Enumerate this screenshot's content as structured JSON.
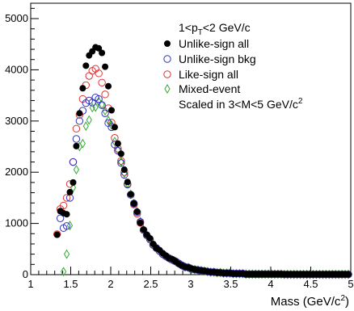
{
  "chart_data": {
    "type": "scatter",
    "title": "",
    "xlabel": "Mass (GeV/c",
    "xlabel_sup": "2",
    "xlabel_end": ")",
    "ylabel": "",
    "xlim": [
      1,
      5
    ],
    "ylim": [
      0,
      5300
    ],
    "x_ticks": [
      1,
      1.5,
      2,
      2.5,
      3,
      3.5,
      4,
      4.5,
      5
    ],
    "y_ticks": [
      0,
      1000,
      2000,
      3000,
      4000,
      5000
    ],
    "grid": false,
    "legend_placement": "top-right",
    "legend_header": {
      "prefix": "1<p",
      "sub": "T",
      "suffix": "<2 GeV/c"
    },
    "legend_footer": {
      "text": "Scaled in 3<M<5 GeV/c",
      "sup": "2"
    },
    "series": [
      {
        "name": "Unlike-sign all",
        "marker": "filled-circle",
        "color": "#000000",
        "x": [
          1.33,
          1.37,
          1.41,
          1.45,
          1.49,
          1.53,
          1.57,
          1.61,
          1.65,
          1.69,
          1.73,
          1.77,
          1.81,
          1.85,
          1.89,
          1.93,
          1.97,
          2.01,
          2.05,
          2.09,
          2.13,
          2.17,
          2.21,
          2.25,
          2.29,
          2.33,
          2.37,
          2.41,
          2.45,
          2.49,
          2.53,
          2.57,
          2.61,
          2.65,
          2.69,
          2.73,
          2.77,
          2.81,
          2.85,
          2.89,
          2.93,
          2.97,
          3.01,
          3.05,
          3.09,
          3.13,
          3.17,
          3.21,
          3.25,
          3.29,
          3.33,
          3.37,
          3.41,
          3.45,
          3.49,
          3.53,
          3.57,
          3.61,
          3.65,
          3.69,
          3.73,
          3.77,
          3.81,
          3.85,
          3.89,
          3.93,
          3.97,
          4.01,
          4.05,
          4.09,
          4.13,
          4.17,
          4.21,
          4.25,
          4.29,
          4.33,
          4.37,
          4.41,
          4.45,
          4.49,
          4.53,
          4.57,
          4.61,
          4.65,
          4.69,
          4.73,
          4.77,
          4.81,
          4.85,
          4.89,
          4.93,
          4.97
        ],
        "values": [
          780,
          1240,
          1200,
          1180,
          1610,
          1800,
          2510,
          3150,
          3640,
          4080,
          4280,
          4360,
          4440,
          4420,
          4330,
          4060,
          3680,
          3210,
          2880,
          2560,
          2360,
          2050,
          1810,
          1570,
          1390,
          1230,
          1010,
          880,
          780,
          710,
          600,
          520,
          480,
          420,
          370,
          320,
          300,
          260,
          210,
          180,
          150,
          140,
          120,
          100,
          90,
          80,
          70,
          60,
          50,
          50,
          40,
          40,
          30,
          30,
          30,
          20,
          20,
          20,
          20,
          10,
          10,
          10,
          10,
          10,
          10,
          10,
          10,
          10,
          10,
          10,
          10,
          5,
          5,
          5,
          5,
          5,
          5,
          5,
          5,
          5,
          5,
          5,
          5,
          5,
          5,
          5,
          5,
          5,
          5,
          5,
          5,
          5
        ]
      },
      {
        "name": "Unlike-sign bkg",
        "marker": "open-circle",
        "color": "#3333bb",
        "x": [
          1.37,
          1.41,
          1.45,
          1.49,
          1.53,
          1.57,
          1.61,
          1.65,
          1.69,
          1.73,
          1.77,
          1.81,
          1.85,
          1.89,
          1.93,
          1.97,
          2.01,
          2.05,
          2.09,
          2.13,
          2.17,
          2.21,
          2.25,
          2.29,
          2.33,
          2.37,
          2.41,
          2.45,
          2.49,
          2.53,
          2.57,
          2.61,
          2.65,
          2.69,
          2.73,
          2.77,
          2.81,
          2.85,
          2.89,
          2.93,
          2.97,
          3.01,
          3.05,
          3.09,
          3.13,
          3.17,
          3.21,
          3.25,
          3.29,
          3.33,
          3.37,
          3.41,
          3.45,
          3.49,
          3.53,
          3.57,
          3.61,
          3.65,
          3.69,
          3.73,
          3.77,
          3.81,
          3.85,
          3.89,
          3.93,
          3.97,
          4.01,
          4.05,
          4.09,
          4.13,
          4.17,
          4.21,
          4.25,
          4.29,
          4.33,
          4.37,
          4.41,
          4.45,
          4.49,
          4.53,
          4.57,
          4.61,
          4.65,
          4.69,
          4.73,
          4.77,
          4.81,
          4.85,
          4.89,
          4.93,
          4.97
        ],
        "values": [
          1100,
          910,
          950,
          1500,
          2200,
          2650,
          3000,
          3200,
          3350,
          3400,
          3360,
          3460,
          3430,
          3310,
          3150,
          2960,
          2880,
          2540,
          2420,
          2180,
          1950,
          1760,
          1560,
          1390,
          1220,
          1030,
          870,
          770,
          690,
          580,
          520,
          460,
          400,
          360,
          320,
          290,
          260,
          220,
          180,
          150,
          140,
          110,
          100,
          90,
          80,
          70,
          60,
          50,
          50,
          40,
          40,
          30,
          30,
          30,
          20,
          20,
          20,
          20,
          10,
          10,
          10,
          10,
          10,
          10,
          10,
          10,
          10,
          10,
          10,
          10,
          5,
          5,
          5,
          5,
          5,
          5,
          5,
          5,
          5,
          5,
          5,
          5,
          5,
          5,
          5,
          5,
          5,
          5,
          5,
          5,
          5
        ]
      },
      {
        "name": "Like-sign all",
        "marker": "open-circle",
        "color": "#dd3333",
        "x": [
          1.33,
          1.37,
          1.41,
          1.45,
          1.49,
          1.53,
          1.57,
          1.61,
          1.65,
          1.69,
          1.73,
          1.77,
          1.81,
          1.85,
          1.89,
          1.93,
          1.97,
          2.01,
          2.05,
          2.09,
          2.13,
          2.17,
          2.21,
          2.25,
          2.29,
          2.33,
          2.37,
          2.41,
          2.45,
          2.49,
          2.53,
          2.57,
          2.61,
          2.65,
          2.69,
          2.73,
          2.77,
          2.81,
          2.85,
          2.89,
          2.93,
          2.97,
          3.01,
          3.05,
          3.09,
          3.13,
          3.17,
          3.21,
          3.25,
          3.29,
          3.33,
          3.37,
          3.41,
          3.45,
          3.49,
          3.53,
          3.57,
          3.61,
          3.65,
          3.69,
          3.73,
          3.77,
          3.81,
          3.85,
          3.89,
          3.93,
          3.97,
          4.01,
          4.05,
          4.09,
          4.13,
          4.17,
          4.21,
          4.25,
          4.29,
          4.33,
          4.37,
          4.41,
          4.45,
          4.49,
          4.53,
          4.57,
          4.61,
          4.65,
          4.69,
          4.73,
          4.77,
          4.81,
          4.85,
          4.89,
          4.93,
          4.97
        ],
        "values": [
          790,
          1280,
          1350,
          1500,
          1770,
          2200,
          2850,
          3120,
          3430,
          3700,
          3880,
          3980,
          4020,
          3930,
          3750,
          3520,
          3250,
          2970,
          2670,
          2460,
          2220,
          2000,
          1770,
          1560,
          1370,
          1190,
          1010,
          870,
          770,
          690,
          580,
          520,
          460,
          400,
          360,
          320,
          290,
          260,
          220,
          180,
          150,
          140,
          110,
          100,
          90,
          80,
          70,
          60,
          50,
          50,
          40,
          40,
          30,
          30,
          30,
          20,
          20,
          20,
          20,
          10,
          10,
          10,
          10,
          10,
          10,
          10,
          10,
          10,
          10,
          10,
          10,
          5,
          5,
          5,
          5,
          5,
          5,
          5,
          5,
          5,
          5,
          5,
          5,
          5,
          5,
          5,
          5,
          5,
          5,
          5,
          5,
          5
        ]
      },
      {
        "name": "Mixed-event",
        "marker": "open-diamond",
        "color": "#33aa33",
        "x": [
          1.41,
          1.45,
          1.49,
          1.53,
          1.57,
          1.61,
          1.65,
          1.69,
          1.73,
          1.77,
          1.81,
          1.85,
          1.89,
          1.93,
          1.97,
          2.01,
          2.05,
          2.09,
          2.13,
          2.17,
          2.21,
          2.25,
          2.29,
          2.33,
          2.37,
          2.41,
          2.45,
          2.49,
          2.53,
          2.57,
          2.61,
          2.65,
          2.69,
          2.73,
          2.77,
          2.81,
          2.85,
          2.89,
          2.93,
          2.97,
          3.01,
          3.05,
          3.09,
          3.13,
          3.17,
          3.21,
          3.25,
          3.29,
          3.33,
          3.37,
          3.41,
          3.45,
          3.49,
          3.53,
          3.57,
          3.61,
          3.65,
          3.69,
          3.73,
          3.77,
          3.81,
          3.85,
          3.89,
          3.93,
          3.97,
          4.01,
          4.05,
          4.09,
          4.13,
          4.17,
          4.21,
          4.25,
          4.29,
          4.33,
          4.37,
          4.41,
          4.45,
          4.49,
          4.53,
          4.57,
          4.61,
          4.65,
          4.69,
          4.73,
          4.77,
          4.81,
          4.85,
          4.89,
          4.93,
          4.97
        ],
        "values": [
          60,
          400,
          960,
          1700,
          2050,
          2500,
          2560,
          2900,
          3020,
          3260,
          3270,
          3380,
          3320,
          3200,
          3010,
          2920,
          2600,
          2430,
          2200,
          1980,
          1780,
          1570,
          1390,
          1230,
          1040,
          880,
          770,
          690,
          580,
          520,
          460,
          400,
          360,
          320,
          290,
          260,
          220,
          180,
          150,
          140,
          110,
          100,
          90,
          80,
          70,
          60,
          50,
          50,
          40,
          40,
          30,
          30,
          30,
          20,
          20,
          20,
          20,
          10,
          10,
          10,
          10,
          10,
          10,
          10,
          10,
          10,
          10,
          10,
          10,
          5,
          5,
          5,
          5,
          5,
          5,
          5,
          5,
          5,
          5,
          5,
          5,
          5,
          5,
          5,
          5,
          5,
          5,
          5,
          5,
          5
        ]
      }
    ]
  }
}
